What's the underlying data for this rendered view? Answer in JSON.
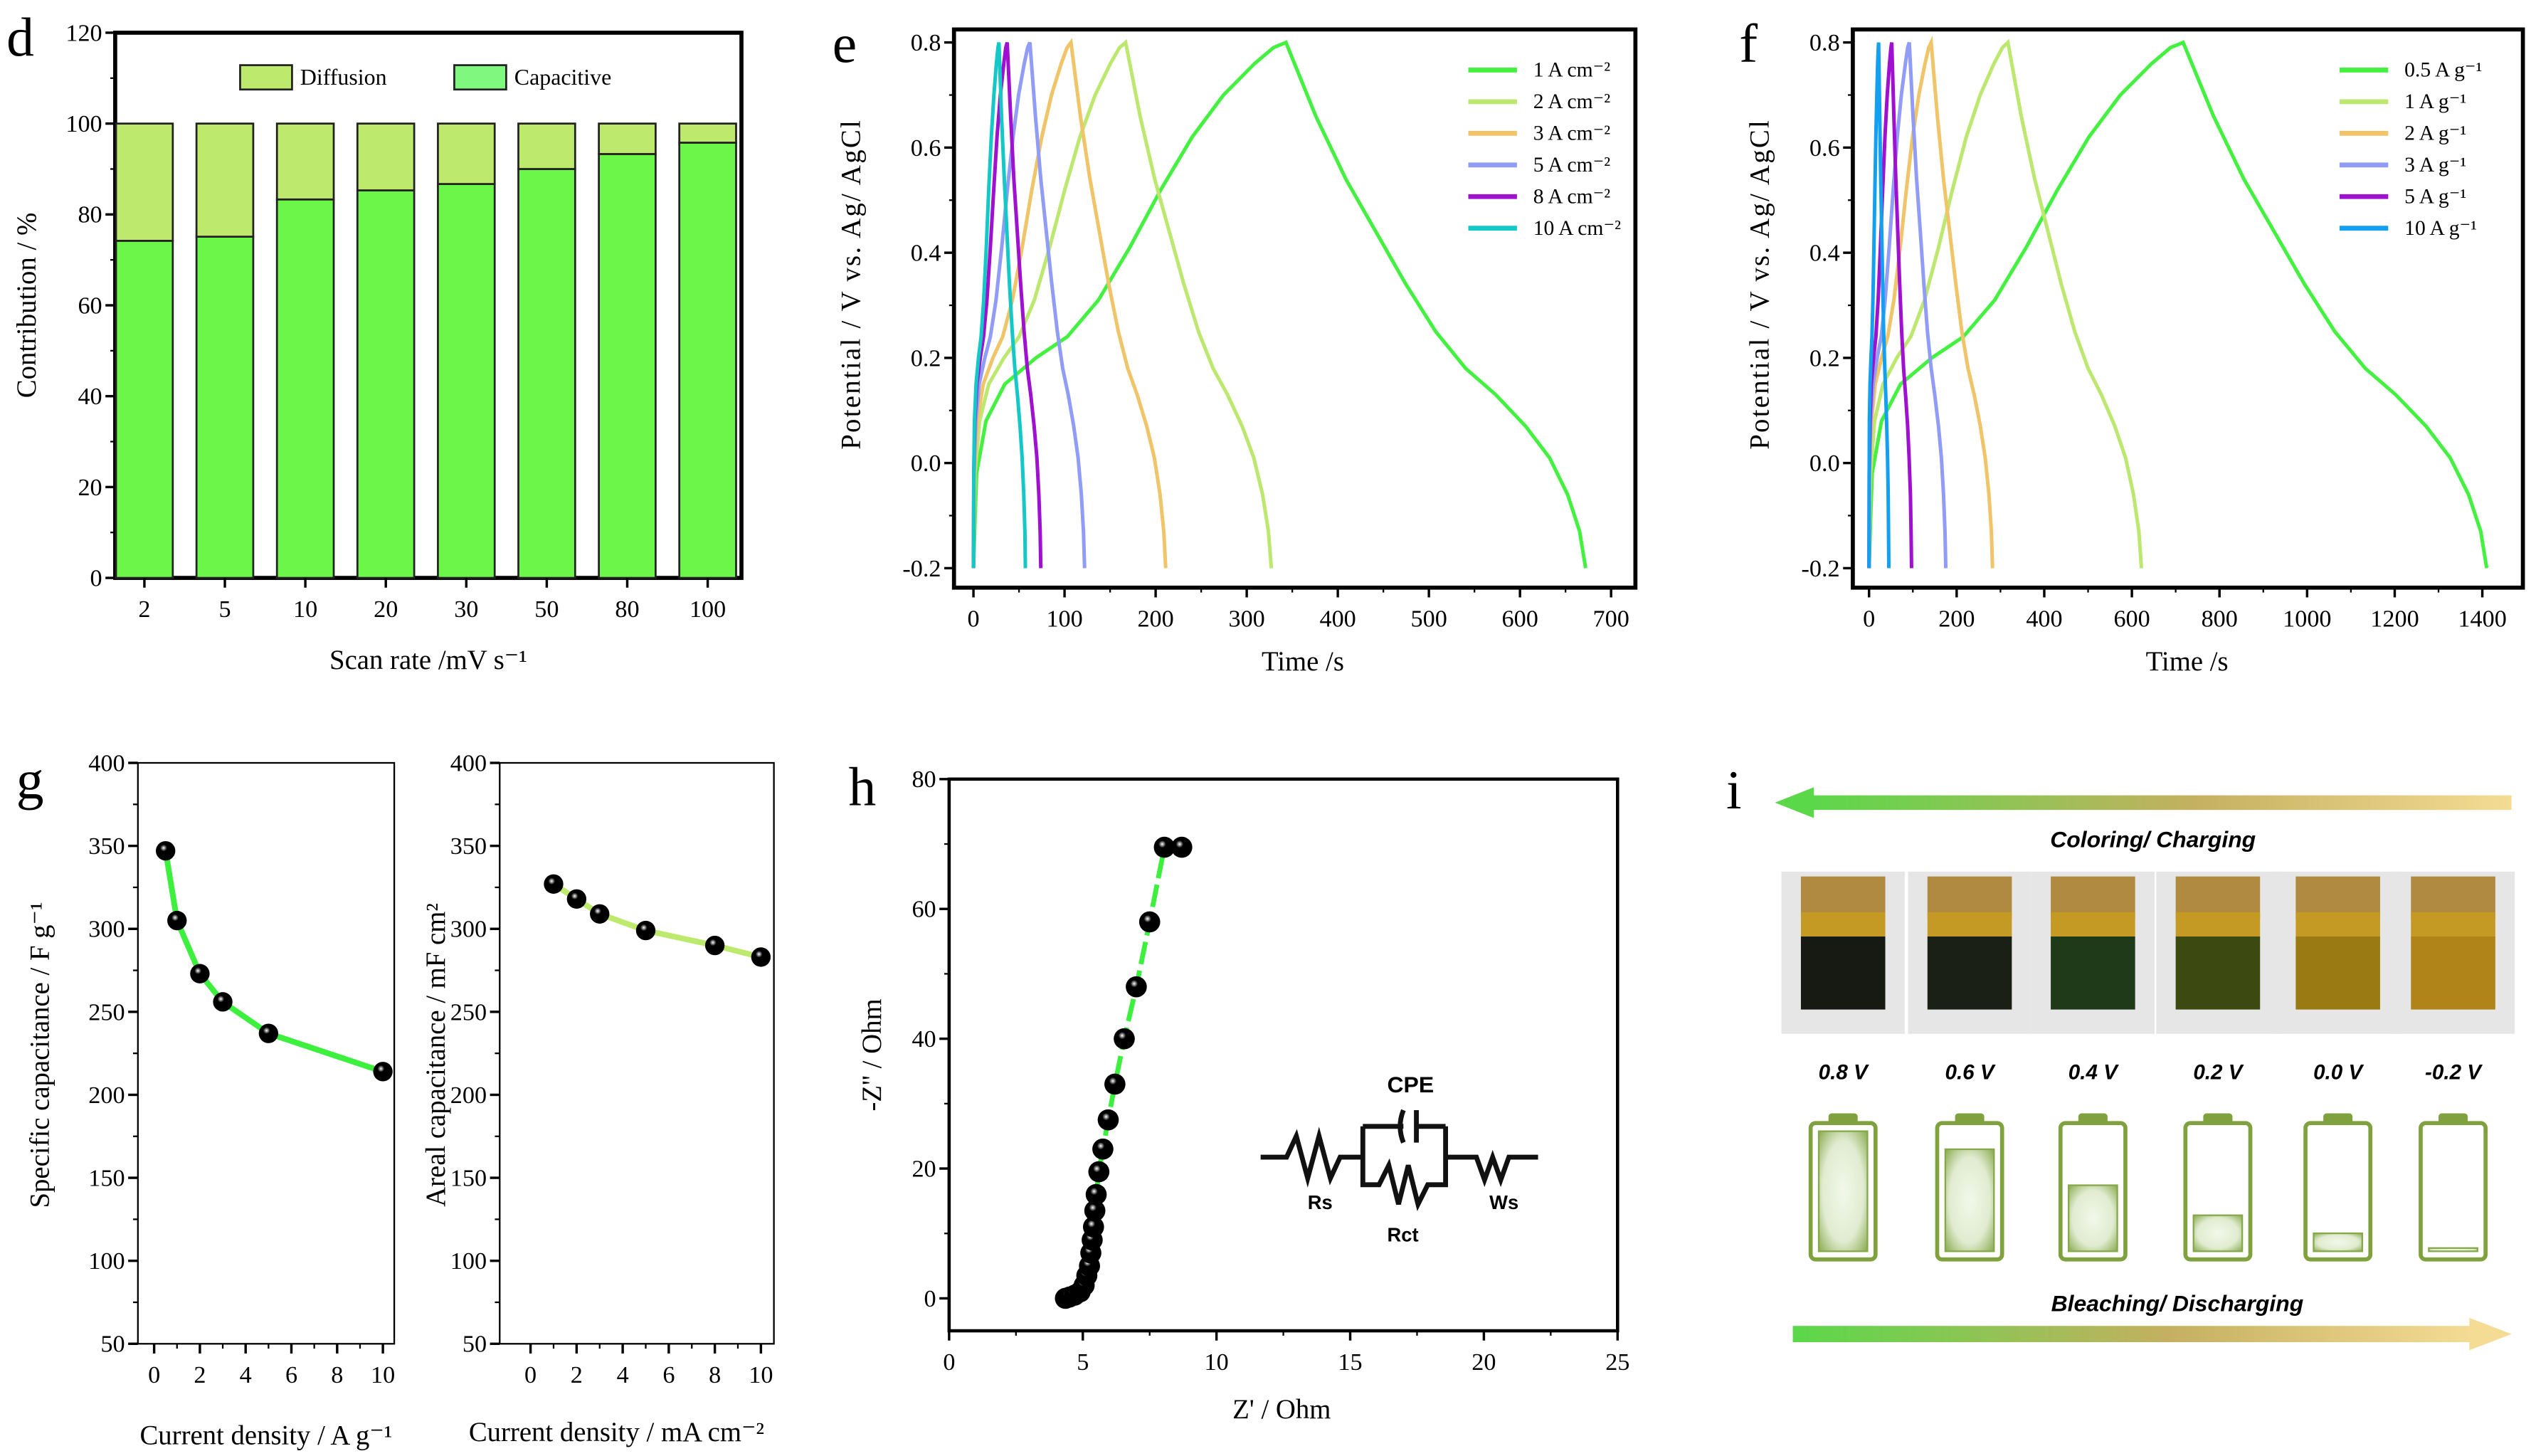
{
  "panel_letters": {
    "d": "d",
    "e": "e",
    "f": "f",
    "g": "g",
    "h": "h",
    "i": "i"
  },
  "chart_data": [
    {
      "id": "d",
      "type": "bar",
      "stacked": true,
      "categories": [
        "2",
        "5",
        "10",
        "20",
        "30",
        "50",
        "80",
        "100"
      ],
      "series": [
        {
          "name": "Capacitive",
          "color": "#6cf64a",
          "values": [
            74.2,
            75.1,
            83.3,
            85.3,
            86.7,
            90.0,
            93.3,
            95.8
          ]
        },
        {
          "name": "Diffusion",
          "color": "#bde96c",
          "values": [
            25.8,
            24.9,
            16.7,
            14.7,
            13.3,
            10.0,
            6.7,
            4.2
          ]
        }
      ],
      "legend": [
        {
          "name": "Diffusion",
          "color": "#bde96c"
        },
        {
          "name": "Capacitive",
          "color": "#80f880"
        }
      ],
      "xlabel": "Scan rate /mV s⁻¹",
      "ylabel": "Contribution / %",
      "ylim": [
        0,
        120
      ],
      "yticks": [
        0,
        20,
        40,
        60,
        80,
        100,
        120
      ]
    },
    {
      "id": "e",
      "type": "line",
      "xlabel": "Time /s",
      "ylabel": "Potential / V vs. Ag/ AgCl",
      "xlim": [
        0,
        700
      ],
      "ylim": [
        -0.2,
        0.8
      ],
      "xticks": [
        0,
        100,
        200,
        300,
        400,
        500,
        600,
        700
      ],
      "yticks": [
        -0.2,
        0.0,
        0.2,
        0.4,
        0.6,
        0.8
      ],
      "series": [
        {
          "name": "1  A cm⁻²",
          "color": "#44f040",
          "charge_end": 343,
          "discharge_end": 672
        },
        {
          "name": "2  A cm⁻²",
          "color": "#bce870",
          "charge_end": 167,
          "discharge_end": 327
        },
        {
          "name": "3  A cm⁻²",
          "color": "#f0c468",
          "charge_end": 107,
          "discharge_end": 211
        },
        {
          "name": "5  A cm⁻²",
          "color": "#909cf6",
          "charge_end": 62,
          "discharge_end": 122
        },
        {
          "name": "8  A cm⁻²",
          "color": "#a010d0",
          "charge_end": 37,
          "discharge_end": 74
        },
        {
          "name": "10  A cm⁻²",
          "color": "#14c8c8",
          "charge_end": 28,
          "discharge_end": 57
        }
      ]
    },
    {
      "id": "f",
      "type": "line",
      "xlabel": "Time /s",
      "ylabel": "Potential / V vs. Ag/ AgCl",
      "xlim": [
        0,
        1400
      ],
      "ylim": [
        -0.2,
        0.8
      ],
      "xticks": [
        0,
        200,
        400,
        600,
        800,
        1000,
        1200,
        1400
      ],
      "yticks": [
        -0.2,
        0.0,
        0.2,
        0.4,
        0.6,
        0.8
      ],
      "series": [
        {
          "name": "0.5  A g⁻¹",
          "color": "#44f040",
          "charge_end": 717,
          "discharge_end": 1410
        },
        {
          "name": "1  A g⁻¹",
          "color": "#bce870",
          "charge_end": 317,
          "discharge_end": 622
        },
        {
          "name": "2  A g⁻¹",
          "color": "#f0c468",
          "charge_end": 142,
          "discharge_end": 282
        },
        {
          "name": "3  A g⁻¹",
          "color": "#909cf6",
          "charge_end": 92,
          "discharge_end": 175
        },
        {
          "name": "5  A g⁻¹",
          "color": "#a010d0",
          "charge_end": 52,
          "discharge_end": 97
        },
        {
          "name": "10  A g⁻¹",
          "color": "#14a0f0",
          "charge_end": 22,
          "discharge_end": 45
        }
      ]
    },
    {
      "id": "g1",
      "type": "line",
      "color": "#3ef03e",
      "x": [
        0.5,
        1,
        2,
        3,
        5,
        10
      ],
      "y": [
        347,
        305,
        273,
        256,
        237,
        214
      ],
      "xlabel": "Current density / A g⁻¹",
      "ylabel": "Specific capacitance / F g⁻¹",
      "xlim": [
        0,
        10
      ],
      "ylim": [
        50,
        400
      ],
      "xticks": [
        0,
        2,
        4,
        6,
        8,
        10
      ],
      "yticks": [
        50,
        100,
        150,
        200,
        250,
        300,
        350,
        400
      ]
    },
    {
      "id": "g2",
      "type": "line",
      "color": "#bde96c",
      "x": [
        1,
        2,
        3,
        5,
        8,
        10
      ],
      "y": [
        327,
        318,
        309,
        299,
        290,
        283
      ],
      "xlabel": "Current density / mA cm⁻²",
      "ylabel": "Areal capacitance / mF cm²",
      "xlim": [
        0,
        10
      ],
      "ylim": [
        50,
        400
      ],
      "xticks": [
        0,
        2,
        4,
        6,
        8,
        10
      ],
      "yticks": [
        50,
        100,
        150,
        200,
        250,
        300,
        350,
        400
      ]
    },
    {
      "id": "h",
      "type": "scatter",
      "color": "#3ef03e",
      "x": [
        4.35,
        4.5,
        4.7,
        4.9,
        5.05,
        5.15,
        5.25,
        5.3,
        5.35,
        5.4,
        5.45,
        5.5,
        5.6,
        5.75,
        5.95,
        6.2,
        6.55,
        7.0,
        7.5,
        8.05,
        8.7
      ],
      "y": [
        0,
        0.2,
        0.5,
        1,
        2,
        3.5,
        5,
        7,
        9,
        11,
        13.5,
        16,
        19.5,
        23,
        27.5,
        33,
        40,
        48,
        58,
        69.5,
        69.5
      ],
      "xlabel": "Z' / Ohm",
      "ylabel": "-Z'' / Ohm",
      "xlim": [
        0,
        25
      ],
      "ylim": [
        -5,
        80
      ],
      "xticks": [
        0,
        5,
        10,
        15,
        20,
        25
      ],
      "yticks": [
        0,
        20,
        40,
        60,
        80
      ],
      "circuit": {
        "cpe": "CPE",
        "rs": "Rs",
        "rct": "Rct",
        "ws": "Ws"
      }
    }
  ],
  "panel_i": {
    "top_label": "Coloring/ Charging",
    "bottom_label": "Bleaching/ Discharging",
    "states": [
      {
        "voltage": "0.8 V",
        "film_color": "#161a12",
        "charge": 1.0
      },
      {
        "voltage": "0.6 V",
        "film_color": "#1a2016",
        "charge": 0.85
      },
      {
        "voltage": "0.4 V",
        "film_color": "#1f3a18",
        "charge": 0.55
      },
      {
        "voltage": "0.2 V",
        "film_color": "#3c4a12",
        "charge": 0.3
      },
      {
        "voltage": "0.0 V",
        "film_color": "#9a7a12",
        "charge": 0.15
      },
      {
        "voltage": "-0.2 V",
        "film_color": "#b08418",
        "charge": 0.02
      }
    ]
  }
}
